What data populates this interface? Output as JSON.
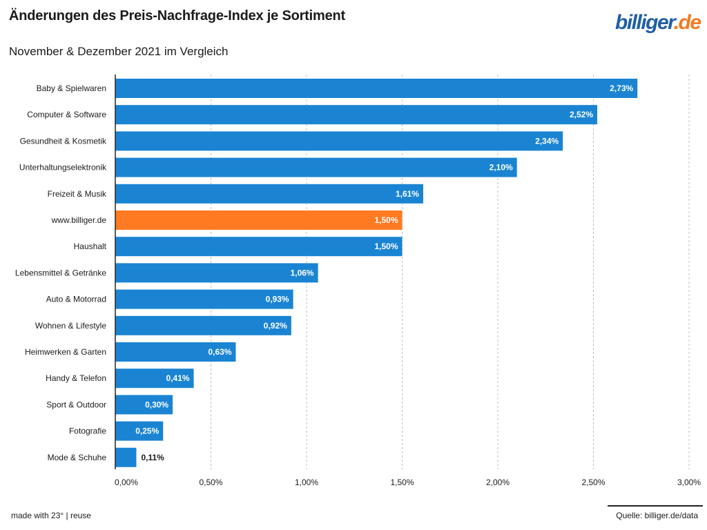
{
  "header": {
    "title": "Änderungen des Preis-Nachfrage-Index je Sortiment",
    "subtitle": "November & Dezember 2021 im Vergleich"
  },
  "logo": {
    "part1": "billiger",
    "part2": ".de",
    "color1": "#1f5fa6",
    "color2": "#f47a20"
  },
  "footer": {
    "made_with": "made with 23° | reuse",
    "source": "Quelle: billiger.de/data"
  },
  "chart_data": {
    "type": "bar",
    "orientation": "horizontal",
    "categories": [
      "Baby & Spielwaren",
      "Computer & Software",
      "Gesundheit & Kosmetik",
      "Unterhaltungselektronik",
      "Freizeit & Musik",
      "www.billiger.de",
      "Haushalt",
      "Lebensmittel & Getränke",
      "Auto & Motorrad",
      "Wohnen & Lifestyle",
      "Heimwerken & Garten",
      "Handy & Telefon",
      "Sport & Outdoor",
      "Fotografie",
      "Mode & Schuhe"
    ],
    "values": [
      2.73,
      2.52,
      2.34,
      2.1,
      1.61,
      1.5,
      1.5,
      1.06,
      0.93,
      0.92,
      0.63,
      0.41,
      0.3,
      0.25,
      0.11
    ],
    "value_labels": [
      "2,73%",
      "2,52%",
      "2,34%",
      "2,10%",
      "1,61%",
      "1,50%",
      "1,50%",
      "1,06%",
      "0,93%",
      "0,92%",
      "0,63%",
      "0,41%",
      "0,30%",
      "0,25%",
      "0,11%"
    ],
    "highlight_category": "www.billiger.de",
    "xlim": [
      0,
      3.0
    ],
    "xticks": [
      0,
      0.5,
      1.0,
      1.5,
      2.0,
      2.5,
      3.0
    ],
    "xtick_labels": [
      "0,00%",
      "0,50%",
      "1,00%",
      "1,50%",
      "2,00%",
      "2,50%",
      "3,00%"
    ],
    "grid": "vertical dashed",
    "colors": {
      "bar": "#1a84d3",
      "highlight": "#ff7a21",
      "grid": "#bdbdbd",
      "axis": "#222222"
    }
  }
}
